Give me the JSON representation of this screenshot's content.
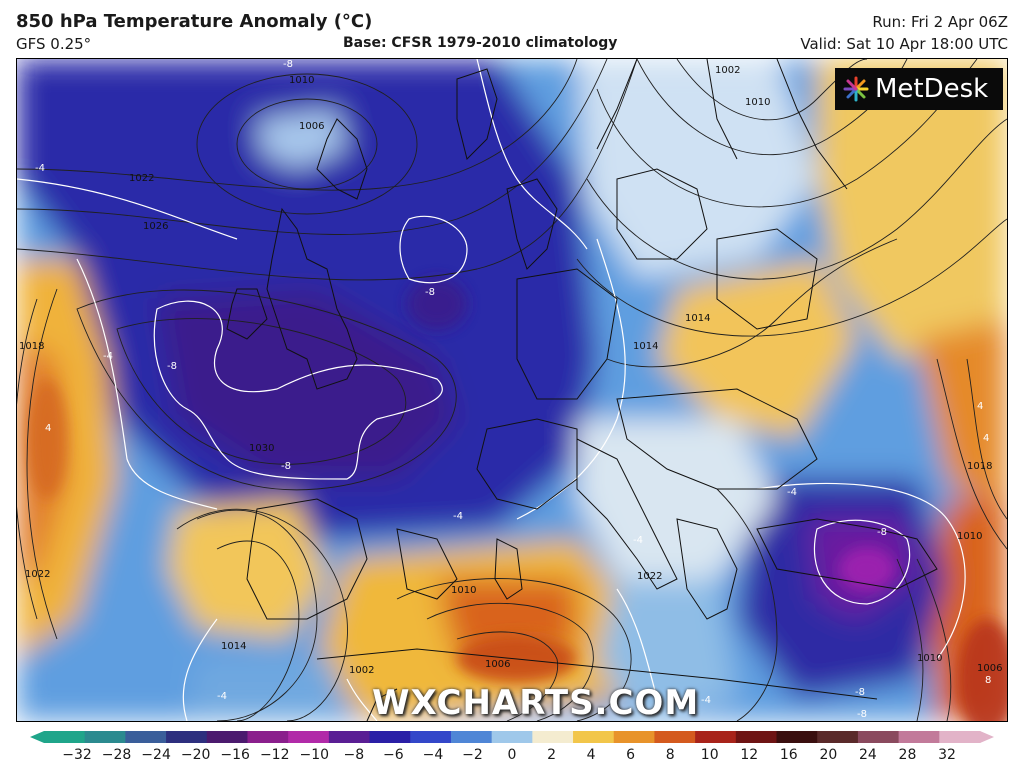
{
  "header": {
    "title": "850 hPa Temperature Anomaly (°C)",
    "model": "GFS 0.25°",
    "base": "Base: CFSR 1979-2010 climatology",
    "run": "Run: Fri 2 Apr 06Z",
    "valid": "Valid: Sat 10 Apr 18:00 UTC"
  },
  "brand": {
    "logo": "MetDesk",
    "watermark": "WXCHARTS.COM"
  },
  "icons": [
    "metdesk-logo-icon"
  ],
  "map": {
    "isobar_labels": [
      "1002",
      "1006",
      "1010",
      "1022",
      "1026",
      "1030",
      "1014",
      "1014",
      "1018",
      "1018",
      "1022",
      "1014",
      "1010",
      "1002",
      "1006",
      "1010",
      "1010",
      "1006",
      "1022",
      "1010"
    ],
    "anomaly_labels": [
      "-8",
      "-4",
      "-8",
      "-8",
      "-8",
      "-4",
      "-8",
      "-4",
      "4",
      "-4",
      "4",
      "-4",
      "-8",
      "-8",
      "4",
      "-4",
      "8",
      "-4"
    ]
  },
  "colorbar": {
    "ticks": [
      "−32",
      "−28",
      "−24",
      "−20",
      "−16",
      "−12",
      "−10",
      "−8",
      "−6",
      "−4",
      "−2",
      "0",
      "2",
      "4",
      "6",
      "8",
      "10",
      "12",
      "16",
      "20",
      "24",
      "28",
      "32"
    ],
    "colors": [
      "#1fa58a",
      "#2b8a8f",
      "#3a5e9a",
      "#2d2f7e",
      "#4b1a6e",
      "#8a1f8c",
      "#b12aa8",
      "#5a1e94",
      "#2a1fa6",
      "#3347c9",
      "#4f86d6",
      "#9fc8ea",
      "#f4ecd0",
      "#f2c64a",
      "#e8932a",
      "#d45a1e",
      "#a8231a",
      "#6e1414",
      "#3a0f0f",
      "#5a2a2a",
      "#8a4a5e",
      "#c27a9a",
      "#e2b3c8"
    ]
  }
}
